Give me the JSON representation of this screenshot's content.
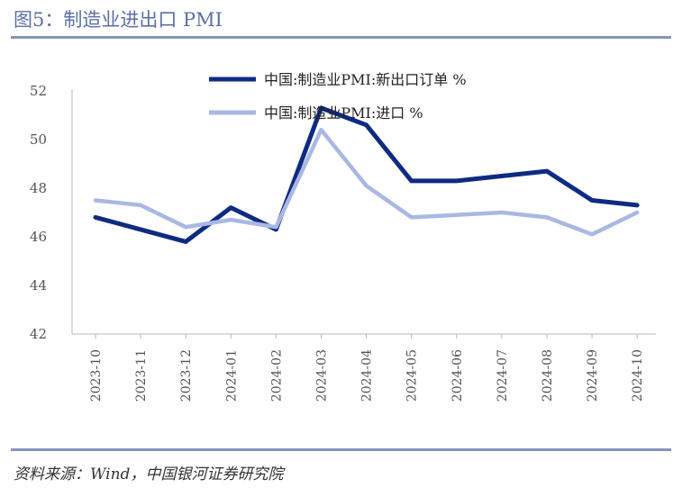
{
  "header": {
    "title": "图5：制造业进出口 PMI"
  },
  "footer": {
    "source": "资料来源：Wind，中国银河证券研究院"
  },
  "colors": {
    "rule": "#8593bd",
    "series1": "#0f2a82",
    "series2": "#a9b8e3"
  },
  "chart_data": {
    "type": "line",
    "title": "",
    "xlabel": "",
    "ylabel": "",
    "ylim": [
      42,
      52
    ],
    "yticks": [
      "42",
      "44",
      "46",
      "48",
      "50",
      "52"
    ],
    "grid": false,
    "legend_position": "top",
    "categories": [
      "2023-10",
      "2023-11",
      "2023-12",
      "2024-01",
      "2024-02",
      "2024-03",
      "2024-04",
      "2024-05",
      "2024-06",
      "2024-07",
      "2024-08",
      "2024-09",
      "2024-10"
    ],
    "series": [
      {
        "name": "中国:制造业PMI:新出口订单 %",
        "color": "#0f2a82",
        "values": [
          46.8,
          46.3,
          45.8,
          47.2,
          46.3,
          51.3,
          50.6,
          48.3,
          48.3,
          48.5,
          48.7,
          47.5,
          47.3
        ]
      },
      {
        "name": "中国:制造业PMI:进口 %",
        "color": "#a9b8e3",
        "values": [
          47.5,
          47.3,
          46.4,
          46.7,
          46.4,
          50.4,
          48.1,
          46.8,
          46.9,
          47.0,
          46.8,
          46.1,
          47.0
        ]
      }
    ]
  }
}
